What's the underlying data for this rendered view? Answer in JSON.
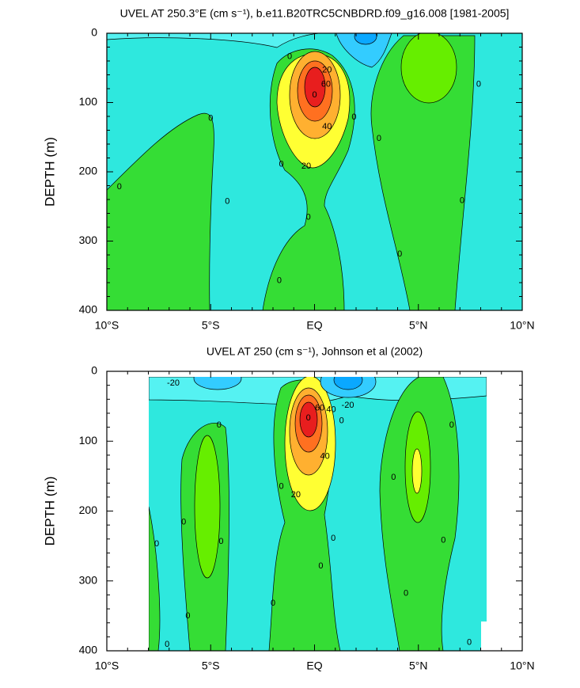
{
  "chart_data": [
    {
      "type": "contour",
      "title": "UVEL AT 250.3°E (cm s⁻¹), b.e11.B20TRC5CNBDRD.f09_g16.008 [1981-2005]",
      "y_label": "DEPTH (m)",
      "xlim": [
        -10,
        10
      ],
      "ylim": [
        0,
        400
      ],
      "y_inverted": true,
      "xticks": [
        {
          "value": -10,
          "label": "10°S"
        },
        {
          "value": -5,
          "label": "5°S"
        },
        {
          "value": 0,
          "label": "EQ"
        },
        {
          "value": 5,
          "label": "5°N"
        },
        {
          "value": 10,
          "label": "10°N"
        }
      ],
      "yticks": [
        0,
        100,
        200,
        300,
        400
      ],
      "contour_labels": [
        {
          "x": -9.4,
          "y": 222,
          "value": 0
        },
        {
          "x": -5.0,
          "y": 123,
          "value": 0
        },
        {
          "x": -4.2,
          "y": 243,
          "value": 0
        },
        {
          "x": -1.2,
          "y": 34,
          "value": 0
        },
        {
          "x": -1.6,
          "y": 189,
          "value": 0
        },
        {
          "x": -1.7,
          "y": 357,
          "value": 0
        },
        {
          "x": -0.3,
          "y": 266,
          "value": 0
        },
        {
          "x": 1.9,
          "y": 121,
          "value": 0
        },
        {
          "x": 3.1,
          "y": 152,
          "value": 0
        },
        {
          "x": 4.1,
          "y": 319,
          "value": 0
        },
        {
          "x": 7.9,
          "y": 74,
          "value": 0
        },
        {
          "x": 7.1,
          "y": 242,
          "value": 0
        },
        {
          "x": 0.0,
          "y": 89,
          "value": 0
        },
        {
          "x": 0.6,
          "y": 53,
          "value": 20
        },
        {
          "x": 0.55,
          "y": 74,
          "value": 60
        },
        {
          "x": 0.6,
          "y": 135,
          "value": 40
        },
        {
          "x": -0.4,
          "y": 192,
          "value": 20
        }
      ]
    },
    {
      "type": "contour",
      "title": "UVEL AT 250 (cm s⁻¹), Johnson et al (2002)",
      "y_label": "DEPTH (m)",
      "xlim": [
        -10,
        10
      ],
      "ylim": [
        0,
        400
      ],
      "y_inverted": true,
      "xticks": [
        {
          "value": -10,
          "label": "10°S"
        },
        {
          "value": -5,
          "label": "5°S"
        },
        {
          "value": 0,
          "label": "EQ"
        },
        {
          "value": 5,
          "label": "5°N"
        },
        {
          "value": 10,
          "label": "10°N"
        }
      ],
      "yticks": [
        0,
        100,
        200,
        300,
        400
      ],
      "contour_labels": [
        {
          "x": -6.8,
          "y": 17,
          "value": -20
        },
        {
          "x": -4.6,
          "y": 77,
          "value": 0
        },
        {
          "x": -6.3,
          "y": 216,
          "value": 0
        },
        {
          "x": -7.6,
          "y": 247,
          "value": 0
        },
        {
          "x": -4.5,
          "y": 244,
          "value": 0
        },
        {
          "x": -6.1,
          "y": 350,
          "value": 0
        },
        {
          "x": -1.6,
          "y": 165,
          "value": 0
        },
        {
          "x": -2.0,
          "y": 332,
          "value": 0
        },
        {
          "x": -0.3,
          "y": 67,
          "value": 0
        },
        {
          "x": 0.25,
          "y": 53,
          "value": 60
        },
        {
          "x": 0.8,
          "y": 55,
          "value": 40
        },
        {
          "x": 1.3,
          "y": 71,
          "value": 0
        },
        {
          "x": 1.6,
          "y": 49,
          "value": -20
        },
        {
          "x": 0.5,
          "y": 122,
          "value": 40
        },
        {
          "x": -0.9,
          "y": 177,
          "value": 20
        },
        {
          "x": 0.9,
          "y": 239,
          "value": 0
        },
        {
          "x": 0.3,
          "y": 279,
          "value": 0
        },
        {
          "x": 3.8,
          "y": 152,
          "value": 0
        },
        {
          "x": 4.4,
          "y": 318,
          "value": 0
        },
        {
          "x": 6.6,
          "y": 77,
          "value": 0
        },
        {
          "x": 6.2,
          "y": 242,
          "value": 0
        },
        {
          "x": 7.45,
          "y": 388,
          "value": 0
        },
        {
          "x": -7.1,
          "y": 391,
          "value": 0
        }
      ]
    }
  ]
}
